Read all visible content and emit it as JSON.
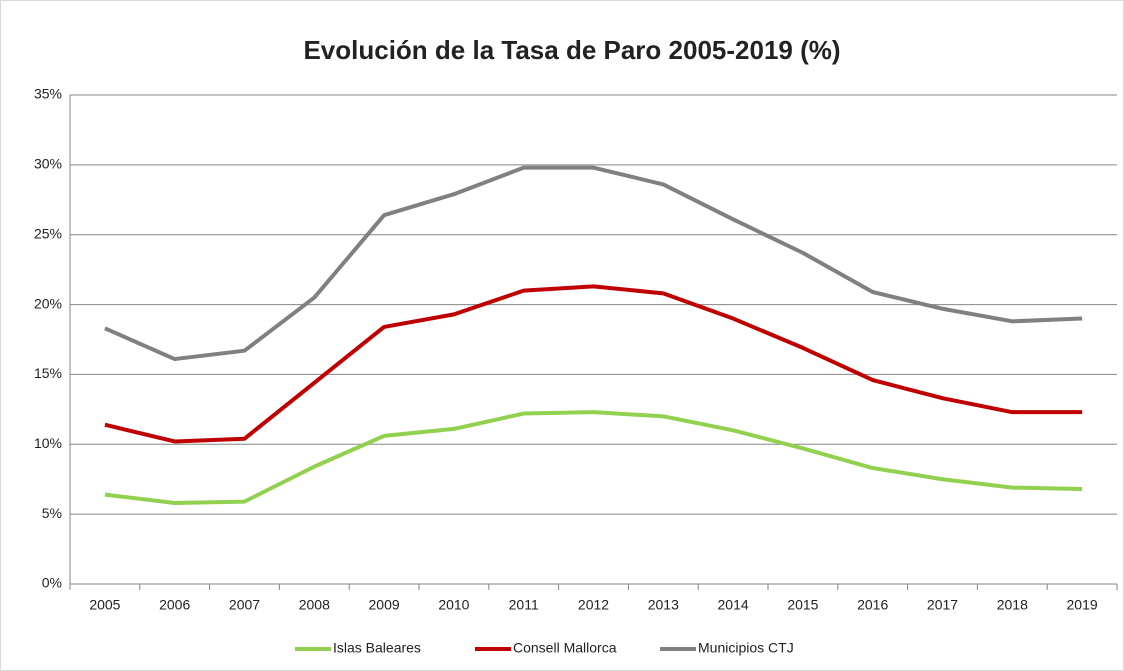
{
  "chart_data": {
    "type": "line",
    "title": "Evolución de la Tasa de Paro 2005-2019 (%)",
    "categories": [
      "2005",
      "2006",
      "2007",
      "2008",
      "2009",
      "2010",
      "2011",
      "2012",
      "2013",
      "2014",
      "2015",
      "2016",
      "2017",
      "2018",
      "2019"
    ],
    "series": [
      {
        "name": "Islas Baleares",
        "color": "#92d050",
        "values": [
          6.4,
          5.8,
          5.9,
          8.4,
          10.6,
          11.1,
          12.2,
          12.3,
          12.0,
          11.0,
          9.7,
          8.3,
          7.5,
          6.9,
          6.8
        ]
      },
      {
        "name": "Consell Mallorca",
        "color": "#c00000",
        "values": [
          11.4,
          10.2,
          10.4,
          14.4,
          18.4,
          19.3,
          21.0,
          21.3,
          20.8,
          19.0,
          16.9,
          14.6,
          13.3,
          12.3,
          12.3
        ]
      },
      {
        "name": "Municipios CTJ",
        "color": "#808080",
        "values": [
          18.3,
          16.1,
          16.7,
          20.5,
          26.4,
          27.9,
          29.8,
          29.8,
          28.6,
          26.1,
          23.7,
          20.9,
          19.7,
          18.8,
          19.0
        ]
      }
    ],
    "ylim": [
      0,
      35
    ],
    "yticks": [
      {
        "value": 0,
        "label": "0%"
      },
      {
        "value": 5,
        "label": "5%"
      },
      {
        "value": 10,
        "label": "10%"
      },
      {
        "value": 15,
        "label": "15%"
      },
      {
        "value": 20,
        "label": "20%"
      },
      {
        "value": 25,
        "label": "25%"
      },
      {
        "value": 30,
        "label": "30%"
      },
      {
        "value": 35,
        "label": "35%"
      }
    ],
    "grid": true,
    "legend": "bottom"
  }
}
